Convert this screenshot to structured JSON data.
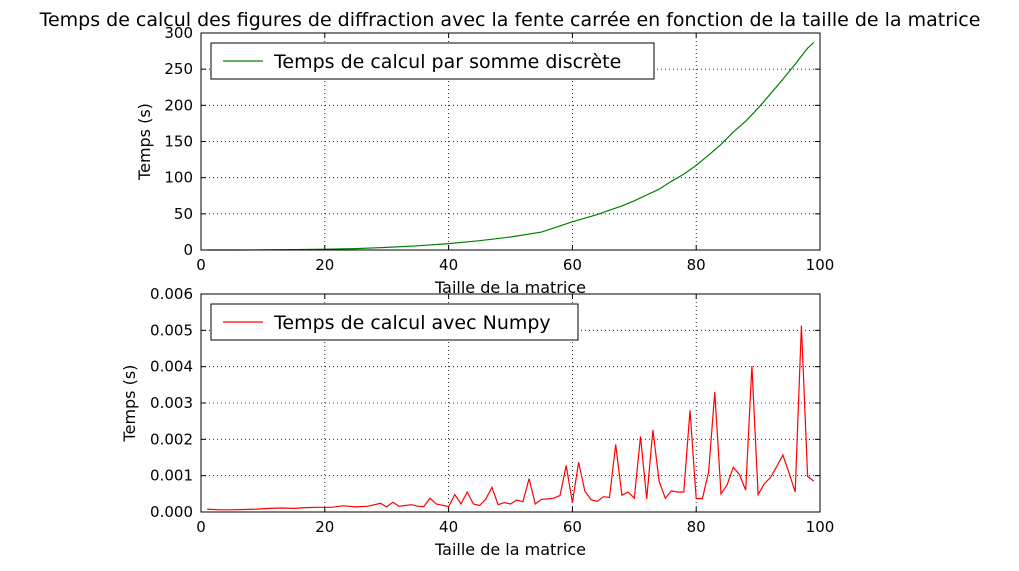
{
  "chart_data": [
    {
      "type": "line",
      "title": "Temps de calcul des figures de diffraction avec la fente carrée en fonction de la taille de la matrice",
      "xlabel": "Taille de la matrice",
      "ylabel": "Temps (s)",
      "xlim": [
        0,
        100
      ],
      "ylim": [
        0,
        300
      ],
      "x_ticks": [
        "0",
        "20",
        "40",
        "60",
        "80",
        "100"
      ],
      "y_ticks": [
        "0",
        "50",
        "100",
        "150",
        "200",
        "250",
        "300"
      ],
      "grid": true,
      "legend": "top-left",
      "series": [
        {
          "name": "Temps de calcul par somme discrète",
          "color": "#008000",
          "x": [
            1,
            5,
            10,
            15,
            20,
            25,
            30,
            35,
            40,
            45,
            50,
            55,
            60,
            62,
            64,
            66,
            68,
            70,
            72,
            74,
            76,
            78,
            80,
            82,
            84,
            86,
            88,
            90,
            92,
            94,
            96,
            98,
            99
          ],
          "y": [
            0,
            0.05,
            0.2,
            0.5,
            1.1,
            2,
            3.6,
            5.8,
            8.8,
            12.8,
            18,
            24.8,
            39,
            44,
            49,
            55,
            61,
            68,
            76,
            84,
            95,
            105,
            117,
            131,
            146,
            163,
            178,
            196,
            216,
            236,
            257,
            279,
            287
          ]
        }
      ]
    },
    {
      "type": "line",
      "xlabel": "Taille de la matrice",
      "ylabel": "Temps (s)",
      "xlim": [
        0,
        100
      ],
      "ylim": [
        0,
        0.006
      ],
      "x_ticks": [
        "0",
        "20",
        "40",
        "60",
        "80",
        "100"
      ],
      "y_ticks": [
        "0.000",
        "0.001",
        "0.002",
        "0.003",
        "0.004",
        "0.005",
        "0.006"
      ],
      "grid": true,
      "legend": "top-left",
      "series": [
        {
          "name": "Temps de calcul avec Numpy",
          "color": "#ff0000",
          "x": [
            1,
            3,
            5,
            7,
            9,
            11,
            13,
            15,
            17,
            19,
            21,
            23,
            25,
            27,
            29,
            30,
            31,
            32,
            34,
            35,
            36,
            37,
            38,
            40,
            41,
            42,
            43,
            44,
            45,
            46,
            47,
            48,
            49,
            50,
            51,
            52,
            53,
            54,
            55,
            56,
            57,
            58,
            59,
            60,
            61,
            62,
            63,
            64,
            65,
            66,
            67,
            68,
            69,
            70,
            71,
            72,
            73,
            74,
            75,
            76,
            77,
            78,
            79,
            80,
            81,
            82,
            83,
            84,
            85,
            86,
            87,
            88,
            89,
            90,
            91,
            92,
            93,
            94,
            95,
            96,
            97,
            98,
            99
          ],
          "y": [
            8e-05,
            6e-05,
            6e-05,
            7e-05,
            8e-05,
            0.0001,
            0.00011,
            0.0001,
            0.00012,
            0.00013,
            0.00013,
            0.00017,
            0.00014,
            0.00016,
            0.00024,
            0.00014,
            0.00027,
            0.00016,
            0.0002,
            0.00016,
            0.00015,
            0.00038,
            0.00022,
            0.00015,
            0.00048,
            0.00022,
            0.00055,
            0.00022,
            0.00018,
            0.00035,
            0.00068,
            0.0002,
            0.00026,
            0.00022,
            0.00033,
            0.00028,
            0.00092,
            0.00022,
            0.00035,
            0.00036,
            0.00038,
            0.00045,
            0.00128,
            0.00026,
            0.00137,
            0.00058,
            0.00034,
            0.00029,
            0.00042,
            0.0004,
            0.00186,
            0.00046,
            0.00055,
            0.00038,
            0.00208,
            0.00036,
            0.00226,
            0.00085,
            0.00038,
            0.00058,
            0.00055,
            0.00055,
            0.0028,
            0.00037,
            0.00037,
            0.0011,
            0.0033,
            0.0005,
            0.00075,
            0.00123,
            0.00103,
            0.0006,
            0.00402,
            0.00048,
            0.00078,
            0.00095,
            0.00125,
            0.00157,
            0.00108,
            0.00055,
            0.00513,
            0.00098,
            0.00085
          ]
        }
      ]
    }
  ]
}
